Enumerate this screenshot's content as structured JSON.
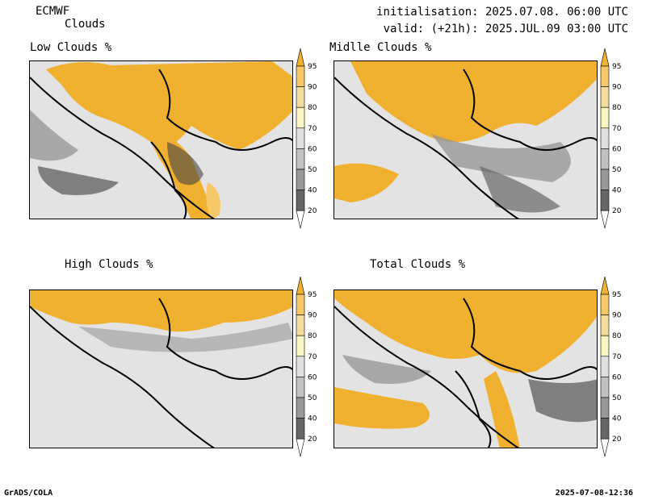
{
  "header": {
    "model": "ECMWF",
    "product": "Clouds",
    "init": "initialisation: 2025.07.08. 06:00 UTC",
    "valid": "valid: (+21h): 2025.JUL.09 03:00 UTC"
  },
  "panels": [
    {
      "id": "low",
      "title": "Low Clouds %"
    },
    {
      "id": "middle",
      "title": "Midlle Clouds %"
    },
    {
      "id": "high",
      "title": "High Clouds %"
    },
    {
      "id": "total",
      "title": "Total Clouds %"
    }
  ],
  "colorbar": {
    "ticks": [
      "95",
      "90",
      "80",
      "70",
      "60",
      "50",
      "40",
      "20"
    ],
    "colors": {
      "c95": "#f0b030",
      "c90": "#f6c86a",
      "c80": "#f4dc9e",
      "c70": "#f8f6c0",
      "c60": "#e0e0e0",
      "c50": "#c2c2c2",
      "c40": "#999999",
      "c30": "#666666",
      "c20": "#444444"
    }
  },
  "footer": {
    "left": "GrADS/COLA",
    "right": "2025-07-08-12:36"
  }
}
